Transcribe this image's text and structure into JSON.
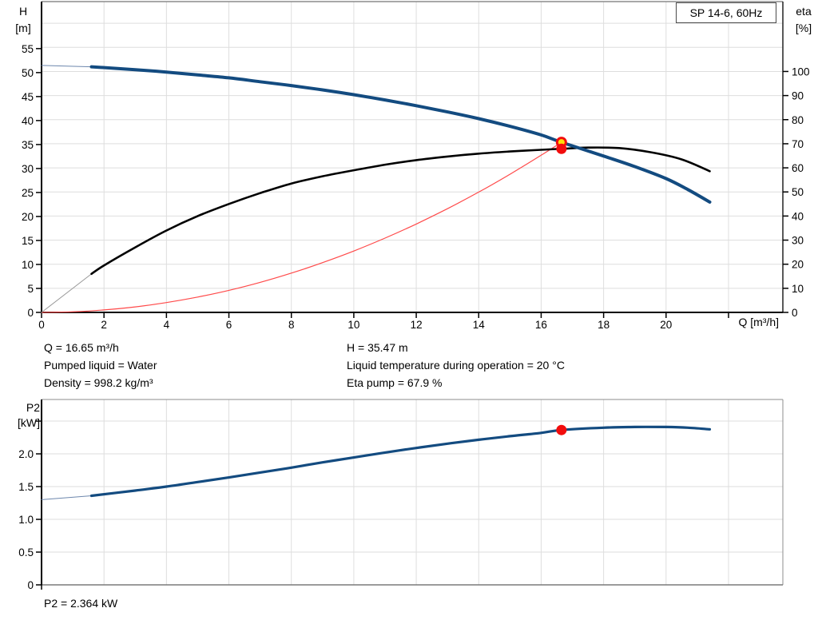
{
  "title_box": {
    "label": "SP 14-6, 60Hz"
  },
  "axis_labels": {
    "h_line1": "H",
    "h_line2": "[m]",
    "eta_line1": "eta",
    "eta_line2": "[%]",
    "q_label": "Q [m³/h]",
    "p2_line1": "P2",
    "p2_line2": "[kW]"
  },
  "annotations": {
    "flow": "Q = 16.65 m³/h",
    "pumped_liquid": "Pumped liquid = Water",
    "density": "Density = 998.2 kg/m³",
    "head": "H = 35.47 m",
    "liquid_temp": "Liquid temperature during operation = 20 °C",
    "eta_pump": "Eta pump = 67.9 %",
    "p2": "P2 = 2.364 kW"
  },
  "colors": {
    "curve_blue": "#134b80",
    "curve_black": "#000000",
    "curve_red": "#ff4a4a",
    "lead_blue": "#6d87ad",
    "lead_gray": "#999999",
    "marker_red": "#f20d0d",
    "marker_yellow": "#ffe10a",
    "grid": "#dedede",
    "axis": "#000000",
    "frame_gray": "#8c8c8c"
  },
  "chart_data": [
    {
      "type": "line",
      "name": "qh-eta-chart",
      "title": "SP 14-6, 60Hz",
      "x_axis": {
        "label": "Q [m³/h]",
        "min": 0,
        "max": 23.74,
        "ticks": [
          0,
          2,
          4,
          6,
          8,
          10,
          12,
          14,
          16,
          18,
          20,
          22
        ],
        "tick_labels": [
          "0",
          "2",
          "4",
          "6",
          "8",
          "10",
          "12",
          "14",
          "16",
          "18",
          "20",
          ""
        ],
        "grid": [
          2,
          4,
          6,
          8,
          10,
          12,
          14,
          16,
          18,
          20,
          22
        ]
      },
      "y_axis": {
        "label": "H [m]",
        "min": 0,
        "max": 64.8,
        "ticks": [
          0,
          5,
          10,
          15,
          20,
          25,
          30,
          35,
          40,
          45,
          50,
          55
        ],
        "tick_labels": [
          "0",
          "5",
          "10",
          "15",
          "20",
          "25",
          "30",
          "35",
          "40",
          "45",
          "50",
          "55"
        ],
        "grid": []
      },
      "y2_axis": {
        "label": "eta [%]",
        "min": 0,
        "max": 129,
        "ticks": [
          0,
          10,
          20,
          30,
          40,
          50,
          60,
          70,
          80,
          90,
          100
        ],
        "tick_labels": [
          "0",
          "10",
          "20",
          "30",
          "40",
          "50",
          "60",
          "70",
          "80",
          "90",
          "100"
        ],
        "grid": [
          10,
          20,
          30,
          40,
          50,
          60,
          70,
          80,
          90,
          100,
          110,
          120
        ]
      },
      "series": [
        {
          "name": "head-curve-lead",
          "axis": "y_axis",
          "color": "#6d87ad",
          "width": 1,
          "clickable": false,
          "points": [
            [
              0,
              51.5
            ],
            [
              1.6,
              51.2
            ]
          ]
        },
        {
          "name": "system-curve",
          "axis": "y_axis",
          "color": "#ff4a4a",
          "width": 1.2,
          "clickable": false,
          "points": [
            [
              0,
              0
            ],
            [
              1,
              0.13
            ],
            [
              2,
              0.51
            ],
            [
              3,
              1.15
            ],
            [
              4,
              2.05
            ],
            [
              5,
              3.2
            ],
            [
              6,
              4.6
            ],
            [
              7,
              6.27
            ],
            [
              8,
              8.19
            ],
            [
              9,
              10.37
            ],
            [
              10,
              12.8
            ],
            [
              11,
              15.49
            ],
            [
              12,
              18.43
            ],
            [
              13,
              21.63
            ],
            [
              14,
              25.08
            ],
            [
              15,
              28.8
            ],
            [
              16,
              32.76
            ],
            [
              16.65,
              35.47
            ]
          ]
        },
        {
          "name": "efficiency-curve-lead",
          "axis": "y2_axis",
          "color": "#999999",
          "width": 1,
          "clickable": false,
          "points": [
            [
              0,
              0
            ],
            [
              1.6,
              16
            ]
          ]
        },
        {
          "name": "efficiency-curve",
          "axis": "y2_axis",
          "color": "#000000",
          "width": 2.6,
          "clickable": true,
          "points": [
            [
              1.6,
              16
            ],
            [
              2,
              19.5
            ],
            [
              3,
              27
            ],
            [
              4,
              34
            ],
            [
              5,
              40
            ],
            [
              6,
              45
            ],
            [
              7,
              49.5
            ],
            [
              8,
              53.5
            ],
            [
              9,
              56.5
            ],
            [
              10,
              59
            ],
            [
              11,
              61.3
            ],
            [
              12,
              63.2
            ],
            [
              13,
              64.7
            ],
            [
              14,
              65.9
            ],
            [
              15,
              66.8
            ],
            [
              16,
              67.5
            ],
            [
              16.65,
              67.9
            ],
            [
              17.5,
              68.4
            ],
            [
              18.5,
              68.2
            ],
            [
              19.5,
              66.5
            ],
            [
              20.5,
              63.5
            ],
            [
              21.4,
              58.6
            ]
          ]
        },
        {
          "name": "head-curve",
          "axis": "y_axis",
          "color": "#134b80",
          "width": 4,
          "clickable": true,
          "points": [
            [
              1.6,
              51.2
            ],
            [
              3,
              50.6
            ],
            [
              4,
              50.1
            ],
            [
              5,
              49.5
            ],
            [
              6,
              48.9
            ],
            [
              7,
              48.1
            ],
            [
              8,
              47.3
            ],
            [
              9,
              46.4
            ],
            [
              10,
              45.4
            ],
            [
              11,
              44.3
            ],
            [
              12,
              43.1
            ],
            [
              13,
              41.8
            ],
            [
              14,
              40.4
            ],
            [
              15,
              38.8
            ],
            [
              16,
              37.0
            ],
            [
              16.65,
              35.47
            ],
            [
              18,
              32.6
            ],
            [
              19,
              30.4
            ],
            [
              20,
              27.9
            ],
            [
              20.7,
              25.6
            ],
            [
              21.4,
              23.0
            ]
          ]
        }
      ],
      "markers": [
        {
          "name": "duty-point-head",
          "axis": "y_axis",
          "x": 16.65,
          "y": 35.47,
          "r": 5.5,
          "fill": "#ffe10a",
          "stroke": "#f20d0d",
          "stroke_width": 3
        },
        {
          "name": "duty-point-eta",
          "axis": "y2_axis",
          "x": 16.65,
          "y": 67.9,
          "r": 6.5,
          "fill": "#f20d0d",
          "stroke": "none",
          "stroke_width": 0
        }
      ]
    },
    {
      "type": "line",
      "name": "p2-chart",
      "title": "",
      "x_axis": {
        "label": "",
        "min": 0,
        "max": 23.74,
        "ticks": [
          0
        ],
        "tick_labels": [
          ""
        ],
        "grid": [
          2,
          4,
          6,
          8,
          10,
          12,
          14,
          16,
          18,
          20,
          22
        ]
      },
      "y_axis": {
        "label": "P2 [kW]",
        "min": 0,
        "max": 2.83,
        "ticks": [
          0,
          0.5,
          1,
          1.5,
          2,
          2.5
        ],
        "tick_labels": [
          "0",
          "0.5",
          "1.0",
          "1.5",
          "2.0",
          ""
        ],
        "grid": [
          0.5,
          1,
          1.5,
          2,
          2.5
        ]
      },
      "series": [
        {
          "name": "p2-curve-lead",
          "axis": "y_axis",
          "color": "#6d87ad",
          "width": 1,
          "clickable": false,
          "points": [
            [
              0,
              1.3
            ],
            [
              1.6,
              1.36
            ]
          ]
        },
        {
          "name": "p2-curve",
          "axis": "y_axis",
          "color": "#134b80",
          "width": 3.2,
          "clickable": true,
          "points": [
            [
              1.6,
              1.36
            ],
            [
              3,
              1.44
            ],
            [
              4,
              1.5
            ],
            [
              5,
              1.57
            ],
            [
              6,
              1.64
            ],
            [
              7,
              1.715
            ],
            [
              8,
              1.79
            ],
            [
              9,
              1.87
            ],
            [
              10,
              1.945
            ],
            [
              11,
              2.02
            ],
            [
              12,
              2.09
            ],
            [
              13,
              2.155
            ],
            [
              14,
              2.215
            ],
            [
              15,
              2.27
            ],
            [
              16,
              2.32
            ],
            [
              16.65,
              2.364
            ],
            [
              18,
              2.4
            ],
            [
              19,
              2.41
            ],
            [
              20,
              2.41
            ],
            [
              20.7,
              2.4
            ],
            [
              21.4,
              2.375
            ]
          ]
        }
      ],
      "markers": [
        {
          "name": "duty-point-p2",
          "axis": "y_axis",
          "x": 16.65,
          "y": 2.364,
          "r": 6.5,
          "fill": "#f20d0d",
          "stroke": "none",
          "stroke_width": 0
        }
      ]
    }
  ]
}
